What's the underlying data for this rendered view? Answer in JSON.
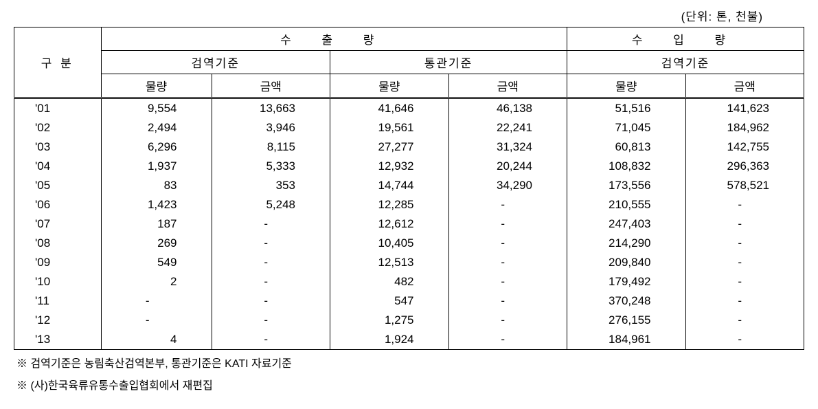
{
  "unit_label": "(단위: 톤, 천불)",
  "headers": {
    "category": "구 분",
    "export": "수  출  량",
    "import": "수  입  량",
    "quarantine_basis": "검역기준",
    "customs_basis": "통관기준",
    "volume": "물량",
    "amount": "금액"
  },
  "rows": [
    {
      "year": "'01",
      "c1": "9,554",
      "c2": "13,663",
      "c3": "41,646",
      "c4": "46,138",
      "c5": "51,516",
      "c6": "141,623"
    },
    {
      "year": "'02",
      "c1": "2,494",
      "c2": "3,946",
      "c3": "19,561",
      "c4": "22,241",
      "c5": "71,045",
      "c6": "184,962"
    },
    {
      "year": "'03",
      "c1": "6,296",
      "c2": "8,115",
      "c3": "27,277",
      "c4": "31,324",
      "c5": "60,813",
      "c6": "142,755"
    },
    {
      "year": "'04",
      "c1": "1,937",
      "c2": "5,333",
      "c3": "12,932",
      "c4": "20,244",
      "c5": "108,832",
      "c6": "296,363"
    },
    {
      "year": "'05",
      "c1": "83",
      "c2": "353",
      "c3": "14,744",
      "c4": "34,290",
      "c5": "173,556",
      "c6": "578,521"
    },
    {
      "year": "'06",
      "c1": "1,423",
      "c2": "5,248",
      "c3": "12,285",
      "c4": "-",
      "c5": "210,555",
      "c6": "-"
    },
    {
      "year": "'07",
      "c1": "187",
      "c2": "-",
      "c3": "12,612",
      "c4": "-",
      "c5": "247,403",
      "c6": "-"
    },
    {
      "year": "'08",
      "c1": "269",
      "c2": "-",
      "c3": "10,405",
      "c4": "-",
      "c5": "214,290",
      "c6": "-"
    },
    {
      "year": "'09",
      "c1": "549",
      "c2": "-",
      "c3": "12,513",
      "c4": "-",
      "c5": "209,840",
      "c6": "-"
    },
    {
      "year": "'10",
      "c1": "2",
      "c2": "-",
      "c3": "482",
      "c4": "-",
      "c5": "179,492",
      "c6": "-"
    },
    {
      "year": "'11",
      "c1": "-",
      "c2": "-",
      "c3": "547",
      "c4": "-",
      "c5": "370,248",
      "c6": "-"
    },
    {
      "year": "'12",
      "c1": "-",
      "c2": "-",
      "c3": "1,275",
      "c4": "-",
      "c5": "276,155",
      "c6": "-"
    },
    {
      "year": "'13",
      "c1": "4",
      "c2": "-",
      "c3": "1,924",
      "c4": "-",
      "c5": "184,961",
      "c6": "-"
    }
  ],
  "footnotes": {
    "note1": "※ 검역기준은 농림축산검역본부, 통관기준은 KATI 자료기준",
    "note2": "※ (사)한국육류유통수출입협회에서 재편집"
  },
  "styling": {
    "font_family": "Malgun Gothic",
    "font_size_table": 17,
    "font_size_footnote": 16,
    "border_color": "#000000",
    "background_color": "#ffffff",
    "text_color": "#000000",
    "column_widths_pct": [
      11,
      14,
      15,
      15,
      15,
      15,
      15
    ],
    "dash_char": "-"
  }
}
